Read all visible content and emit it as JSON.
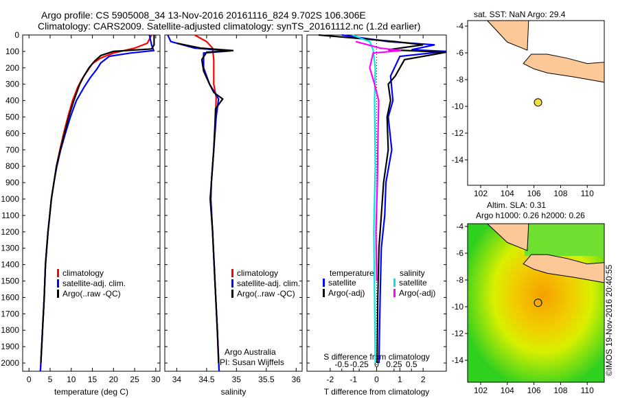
{
  "header": {
    "title1": "Argo profile: CS 5905008_34 13-Nov-2016 20161116_824 9.702S 106.306E",
    "title2": "Climatology: CARS2009. Satellite-adjusted climatology: synTS_20161112.nc (1.2d earlier)"
  },
  "colors": {
    "climatology": "#ff0000",
    "satellite": "#0000ff",
    "argo": "#000000",
    "sal_satellite": "#00e5e5",
    "sal_argo": "#ff00ff",
    "land": "#fcc898"
  },
  "chart_data": [
    {
      "type": "line",
      "id": "temp",
      "xlabel": "temperature (deg C)",
      "xlim": [
        -1.5,
        31
      ],
      "ylim": [
        2050,
        0
      ],
      "xticks": [
        "0",
        "5",
        "10",
        "15",
        "20",
        "25",
        "30"
      ],
      "xtickvals": [
        0,
        5,
        10,
        15,
        20,
        25,
        30
      ],
      "yticks": [
        "0",
        "100",
        "200",
        "300",
        "400",
        "500",
        "600",
        "700",
        "800",
        "900",
        "1000",
        "1100",
        "1200",
        "1300",
        "1400",
        "1500",
        "1600",
        "1700",
        "1800",
        "1900",
        "2000"
      ],
      "legend": [
        "climatology",
        "satellite-adj. clim.",
        "Argo(..raw -QC)"
      ],
      "series": [
        {
          "name": "climatology",
          "color": "#ff0000",
          "points": [
            [
              29,
              0
            ],
            [
              28,
              50
            ],
            [
              25,
              80
            ],
            [
              20,
              110
            ],
            [
              17,
              140
            ],
            [
              15,
              175
            ],
            [
              13.8,
              220
            ],
            [
              12.5,
              270
            ],
            [
              11.5,
              320
            ],
            [
              10.3,
              400
            ],
            [
              9.2,
              500
            ],
            [
              8.2,
              600
            ],
            [
              7.3,
              700
            ],
            [
              6.5,
              800
            ],
            [
              5.9,
              900
            ],
            [
              5.3,
              1000
            ],
            [
              4.9,
              1100
            ],
            [
              4.5,
              1200
            ],
            [
              3.9,
              1400
            ],
            [
              3.6,
              1600
            ],
            [
              3.2,
              1800
            ],
            [
              2.8,
              2000
            ],
            [
              2.7,
              2050
            ]
          ]
        },
        {
          "name": "satellite-adj. clim.",
          "color": "#0000ff",
          "points": [
            [
              28.5,
              0
            ],
            [
              29,
              60
            ],
            [
              29.5,
              95
            ],
            [
              24,
              110
            ],
            [
              19,
              130
            ],
            [
              17,
              170
            ],
            [
              16,
              210
            ],
            [
              14.5,
              260
            ],
            [
              13,
              320
            ],
            [
              11.2,
              400
            ],
            [
              9.8,
              500
            ],
            [
              8.6,
              600
            ],
            [
              7.5,
              700
            ],
            [
              6.6,
              800
            ],
            [
              5.9,
              900
            ],
            [
              5.3,
              1000
            ],
            [
              4.9,
              1100
            ],
            [
              4.5,
              1200
            ],
            [
              3.9,
              1400
            ],
            [
              3.6,
              1600
            ],
            [
              3.2,
              1800
            ],
            [
              2.8,
              2000
            ],
            [
              2.7,
              2050
            ]
          ]
        },
        {
          "name": "Argo(..raw -QC)",
          "color": "#000000",
          "points": [
            [
              29.6,
              0
            ],
            [
              29.6,
              60
            ],
            [
              29,
              85
            ],
            [
              20,
              100
            ],
            [
              17,
              125
            ],
            [
              15.5,
              160
            ],
            [
              14.2,
              200
            ],
            [
              13,
              250
            ],
            [
              12,
              300
            ],
            [
              10.6,
              400
            ],
            [
              9.4,
              500
            ],
            [
              8.4,
              600
            ],
            [
              7.4,
              700
            ],
            [
              6.5,
              800
            ],
            [
              5.9,
              900
            ],
            [
              5.3,
              1000
            ],
            [
              4.9,
              1100
            ],
            [
              4.5,
              1200
            ],
            [
              3.9,
              1400
            ],
            [
              3.6,
              1600
            ],
            [
              3.2,
              1800
            ],
            [
              2.8,
              2000
            ]
          ]
        }
      ]
    },
    {
      "type": "line",
      "id": "sal",
      "xlabel": "salinity",
      "xlim": [
        33.8,
        36.1
      ],
      "ylim": [
        2050,
        0
      ],
      "xticks": [
        "34",
        "34.5",
        "35",
        "35.5",
        "36"
      ],
      "xtickvals": [
        34,
        34.5,
        35,
        35.5,
        36
      ],
      "legend": [
        "climatology",
        "satellite-adj. clim.",
        "Argo(..raw -QC)"
      ],
      "annotation": [
        "Argo Australia",
        "PI: Susan Wijffels"
      ],
      "series": [
        {
          "name": "climatology",
          "color": "#ff0000",
          "points": [
            [
              34.3,
              0
            ],
            [
              34.5,
              40
            ],
            [
              34.6,
              80
            ],
            [
              34.62,
              150
            ],
            [
              34.62,
              300
            ],
            [
              34.66,
              380
            ],
            [
              34.65,
              500
            ],
            [
              34.62,
              700
            ],
            [
              34.58,
              900
            ],
            [
              34.57,
              1000
            ],
            [
              34.6,
              1200
            ],
            [
              34.64,
              1500
            ],
            [
              34.68,
              1800
            ],
            [
              34.71,
              2050
            ]
          ]
        },
        {
          "name": "satellite-adj. clim.",
          "color": "#0000ff",
          "points": [
            [
              33.85,
              0
            ],
            [
              33.9,
              40
            ],
            [
              34.3,
              80
            ],
            [
              34.9,
              97
            ],
            [
              34.45,
              110
            ],
            [
              34.45,
              200
            ],
            [
              34.55,
              300
            ],
            [
              34.7,
              390
            ],
            [
              34.66,
              500
            ],
            [
              34.62,
              700
            ],
            [
              34.58,
              900
            ],
            [
              34.57,
              1000
            ],
            [
              34.6,
              1200
            ],
            [
              34.64,
              1500
            ],
            [
              34.68,
              1800
            ],
            [
              34.71,
              2050
            ]
          ]
        },
        {
          "name": "Argo(..raw -QC)",
          "color": "#000000",
          "points": [
            [
              34.0,
              50
            ],
            [
              34.4,
              80
            ],
            [
              34.95,
              95
            ],
            [
              34.5,
              105
            ],
            [
              34.42,
              150
            ],
            [
              34.45,
              220
            ],
            [
              34.55,
              300
            ],
            [
              34.62,
              350
            ],
            [
              34.77,
              390
            ],
            [
              34.65,
              450
            ],
            [
              34.64,
              550
            ],
            [
              34.62,
              700
            ],
            [
              34.59,
              850
            ],
            [
              34.56,
              1000
            ],
            [
              34.6,
              1200
            ],
            [
              34.64,
              1500
            ],
            [
              34.68,
              1800
            ],
            [
              34.7,
              2000
            ]
          ]
        }
      ]
    },
    {
      "type": "line",
      "id": "diff",
      "xlabel": "T difference from climatology",
      "xlabel2": "S difference from climatology",
      "xlim": [
        -3,
        3
      ],
      "ylim": [
        2050,
        0
      ],
      "xticks": [
        "-2",
        "-1",
        "0",
        "1",
        "2"
      ],
      "xtickvals": [
        -2,
        -1,
        0,
        1,
        2
      ],
      "xticks2": [
        "-0.5",
        "-0.25",
        "0",
        "0.25",
        "0.5"
      ],
      "xtickvals2": [
        -0.5,
        -0.25,
        0,
        0.25,
        0.5
      ],
      "legend_title_t": "temperature",
      "legend_title_s": "salinity",
      "legend": [
        "satellite",
        "Argo(-adj)",
        "satellite",
        "Argo(-adj)"
      ],
      "series": [
        {
          "name": "T satellite",
          "color": "#0000ff",
          "var": "T",
          "points": [
            [
              -1.5,
              0
            ],
            [
              0.5,
              40
            ],
            [
              2.5,
              60
            ],
            [
              1.5,
              90
            ],
            [
              3,
              100
            ],
            [
              1,
              130
            ],
            [
              0.6,
              250
            ],
            [
              0.7,
              400
            ],
            [
              0.5,
              500
            ],
            [
              0.65,
              700
            ],
            [
              0.4,
              900
            ],
            [
              0.35,
              1100
            ],
            [
              0.2,
              1300
            ],
            [
              0.15,
              1600
            ],
            [
              0.1,
              2000
            ]
          ]
        },
        {
          "name": "T Argo(-adj)",
          "color": "#000000",
          "var": "T",
          "points": [
            [
              -2.5,
              0
            ],
            [
              0.8,
              40
            ],
            [
              2,
              60
            ],
            [
              0.5,
              90
            ],
            [
              3,
              105
            ],
            [
              1.2,
              150
            ],
            [
              0.8,
              250
            ],
            [
              0.5,
              300
            ],
            [
              0.6,
              400
            ],
            [
              0.45,
              500
            ],
            [
              0.5,
              700
            ],
            [
              0.3,
              900
            ],
            [
              0.2,
              1100
            ],
            [
              0.1,
              1300
            ],
            [
              0.05,
              1600
            ],
            [
              0.02,
              2000
            ]
          ]
        },
        {
          "name": "S satellite",
          "color": "#00e5e5",
          "var": "S",
          "points": [
            [
              -0.35,
              0
            ],
            [
              -0.1,
              40
            ],
            [
              -0.05,
              90
            ],
            [
              -0.02,
              200
            ],
            [
              -0.03,
              400
            ],
            [
              -0.02,
              800
            ],
            [
              -0.04,
              1200
            ],
            [
              -0.03,
              1600
            ],
            [
              -0.02,
              2000
            ]
          ]
        },
        {
          "name": "S Argo(-adj)",
          "color": "#ff00ff",
          "var": "S",
          "points": [
            [
              -0.3,
              40
            ],
            [
              0.05,
              80
            ],
            [
              0.35,
              95
            ],
            [
              -0.05,
              110
            ],
            [
              -0.1,
              200
            ],
            [
              -0.03,
              300
            ],
            [
              0.03,
              400
            ],
            [
              0.02,
              600
            ],
            [
              0.01,
              900
            ],
            [
              -0.01,
              1200
            ],
            [
              0.0,
              1500
            ]
          ]
        }
      ]
    },
    {
      "type": "map",
      "id": "sst",
      "title": "sat. SST: NaN Argo: 29.4",
      "xticks": [
        "102",
        "104",
        "106",
        "108",
        "110"
      ],
      "yticks": [
        "-4",
        "-6",
        "-8",
        "-10",
        "-12",
        "-14"
      ],
      "marker": {
        "lon": 106.306,
        "lat": -9.702,
        "color": "#f0e040"
      }
    },
    {
      "type": "heatmap",
      "id": "sla",
      "title1": "Altim. SLA: 0.31",
      "title2": "Argo h1000: 0.26 h2000: 0.26",
      "xticks": [
        "102",
        "104",
        "106",
        "108",
        "110"
      ],
      "yticks": [
        "-4",
        "-6",
        "-8",
        "-10",
        "-12",
        "-14"
      ],
      "marker": {
        "lon": 106.306,
        "lat": -9.702
      }
    }
  ],
  "credit": "©IMOS 19-Nov-2016 20:40:55"
}
